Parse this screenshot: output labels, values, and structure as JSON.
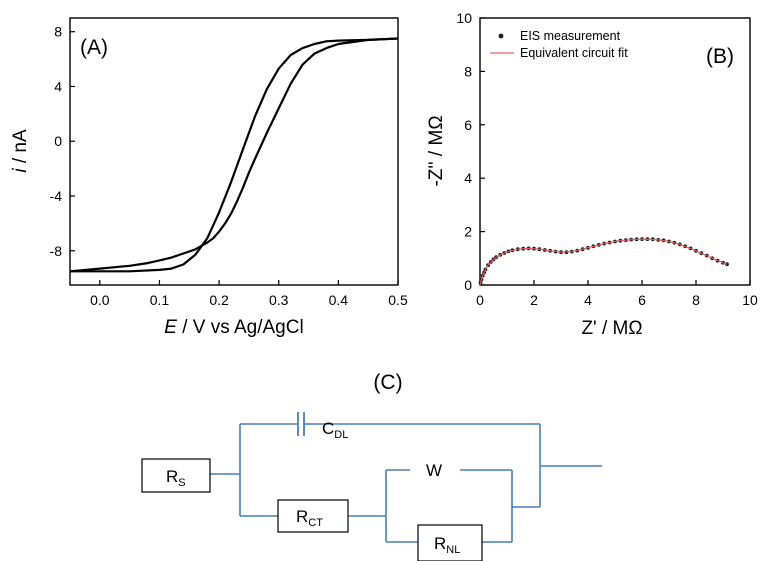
{
  "panels": {
    "a": {
      "tag": "(A)"
    },
    "b": {
      "tag": "(B)"
    },
    "c": {
      "tag": "(C)"
    }
  },
  "colors": {
    "axis": "#000000",
    "cv_curve": "#000000",
    "eis_points": "#1a1a1a",
    "fit_line": "#e06060",
    "circuit_wire": "#4a7fb5"
  },
  "chart_data": [
    {
      "type": "line",
      "panel": "A",
      "xlabel_italic": "E",
      "xlabel_rest": " / V vs Ag/AgCl",
      "ylabel_italic": "i",
      "ylabel_rest": " / nA",
      "xlim": [
        -0.05,
        0.5
      ],
      "ylim": [
        -10.5,
        9
      ],
      "xticks": [
        0.0,
        0.1,
        0.2,
        0.3,
        0.4,
        0.5
      ],
      "xtick_labels": [
        "0.0",
        "0.1",
        "0.2",
        "0.3",
        "0.4",
        "0.5"
      ],
      "yticks": [
        8,
        4,
        0,
        -4,
        -8
      ],
      "ytick_labels": [
        "8",
        "4",
        "0",
        "-4",
        "-8"
      ],
      "series": [
        {
          "x": [
            0.5,
            0.45,
            0.4,
            0.38,
            0.36,
            0.34,
            0.32,
            0.3,
            0.28,
            0.26,
            0.25,
            0.24,
            0.23,
            0.22,
            0.21,
            0.2,
            0.19,
            0.18,
            0.16,
            0.14,
            0.12,
            0.1,
            0.08,
            0.05,
            0.0,
            -0.05
          ],
          "y": [
            7.5,
            7.4,
            7.1,
            6.8,
            6.4,
            5.6,
            4.2,
            2.4,
            0.6,
            -1.3,
            -2.3,
            -3.4,
            -4.4,
            -5.3,
            -6.0,
            -6.6,
            -7.1,
            -7.4,
            -7.9,
            -8.2,
            -8.5,
            -8.7,
            -8.9,
            -9.1,
            -9.3,
            -9.5
          ]
        },
        {
          "x": [
            -0.05,
            0.0,
            0.05,
            0.1,
            0.12,
            0.14,
            0.16,
            0.18,
            0.2,
            0.22,
            0.24,
            0.26,
            0.28,
            0.3,
            0.32,
            0.34,
            0.36,
            0.38,
            0.4,
            0.45,
            0.5
          ],
          "y": [
            -9.5,
            -9.5,
            -9.5,
            -9.4,
            -9.3,
            -9.0,
            -8.3,
            -7.1,
            -5.2,
            -3.0,
            -0.6,
            1.8,
            3.8,
            5.3,
            6.3,
            6.8,
            7.1,
            7.3,
            7.35,
            7.4,
            7.5
          ]
        }
      ]
    },
    {
      "type": "scatter",
      "panel": "B",
      "xlabel": "Z' / MΩ",
      "ylabel": "-Z'' / MΩ",
      "xlim": [
        0,
        10
      ],
      "ylim": [
        0,
        10
      ],
      "xticks": [
        0,
        2,
        4,
        6,
        8,
        10
      ],
      "xtick_labels": [
        "0",
        "2",
        "4",
        "6",
        "8",
        "10"
      ],
      "yticks": [
        0,
        2,
        4,
        6,
        8,
        10
      ],
      "ytick_labels": [
        "0",
        "2",
        "4",
        "6",
        "8",
        "10"
      ],
      "legend": {
        "placement": "top-left",
        "entries": [
          "EIS measurement",
          "Equivalent circuit fit"
        ]
      },
      "series": [
        {
          "name": "EIS measurement",
          "x": [
            0.02,
            0.05,
            0.1,
            0.15,
            0.2,
            0.3,
            0.4,
            0.5,
            0.6,
            0.75,
            0.9,
            1.05,
            1.2,
            1.4,
            1.6,
            1.8,
            2.0,
            2.2,
            2.4,
            2.6,
            2.8,
            3.0,
            3.2,
            3.4,
            3.6,
            3.8,
            4.0,
            4.2,
            4.4,
            4.6,
            4.8,
            5.0,
            5.2,
            5.4,
            5.6,
            5.8,
            6.0,
            6.2,
            6.4,
            6.6,
            6.8,
            7.0,
            7.2,
            7.4,
            7.6,
            7.8,
            8.0,
            8.2,
            8.4,
            8.6,
            8.8,
            9.0,
            9.15
          ],
          "y": [
            0.08,
            0.2,
            0.35,
            0.47,
            0.58,
            0.74,
            0.86,
            0.96,
            1.04,
            1.13,
            1.2,
            1.26,
            1.3,
            1.34,
            1.36,
            1.37,
            1.36,
            1.34,
            1.31,
            1.28,
            1.25,
            1.23,
            1.23,
            1.25,
            1.29,
            1.34,
            1.39,
            1.45,
            1.5,
            1.55,
            1.59,
            1.63,
            1.66,
            1.68,
            1.7,
            1.71,
            1.72,
            1.72,
            1.71,
            1.69,
            1.67,
            1.63,
            1.58,
            1.52,
            1.45,
            1.37,
            1.28,
            1.19,
            1.1,
            1.0,
            0.91,
            0.83,
            0.78
          ]
        },
        {
          "name": "Equivalent circuit fit",
          "x": [
            0.0,
            0.05,
            0.1,
            0.2,
            0.3,
            0.5,
            0.75,
            1.0,
            1.4,
            1.8,
            2.2,
            2.6,
            3.0,
            3.4,
            3.8,
            4.2,
            4.6,
            5.0,
            5.4,
            5.8,
            6.2,
            6.6,
            7.0,
            7.4,
            7.8,
            8.2,
            8.6,
            9.0,
            9.15
          ],
          "y": [
            0.0,
            0.2,
            0.35,
            0.58,
            0.74,
            0.96,
            1.13,
            1.24,
            1.34,
            1.37,
            1.34,
            1.28,
            1.23,
            1.25,
            1.34,
            1.45,
            1.55,
            1.63,
            1.68,
            1.71,
            1.72,
            1.69,
            1.63,
            1.52,
            1.37,
            1.19,
            1.0,
            0.83,
            0.78
          ]
        }
      ]
    }
  ],
  "circuit": {
    "rs": {
      "main": "R",
      "sub": "S"
    },
    "cdl": {
      "main": "C",
      "sub": "DL"
    },
    "rct": {
      "main": "R",
      "sub": "CT"
    },
    "w": {
      "main": "W"
    },
    "rnl": {
      "main": "R",
      "sub": "NL"
    }
  }
}
